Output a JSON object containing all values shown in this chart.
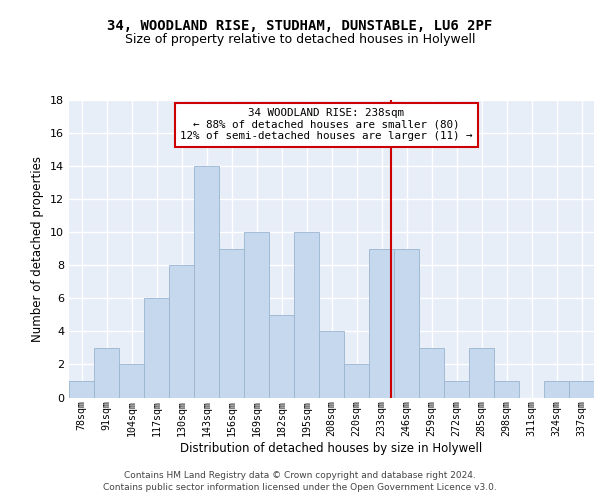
{
  "title1": "34, WOODLAND RISE, STUDHAM, DUNSTABLE, LU6 2PF",
  "title2": "Size of property relative to detached houses in Holywell",
  "xlabel": "Distribution of detached houses by size in Holywell",
  "ylabel": "Number of detached properties",
  "categories": [
    "78sqm",
    "91sqm",
    "104sqm",
    "117sqm",
    "130sqm",
    "143sqm",
    "156sqm",
    "169sqm",
    "182sqm",
    "195sqm",
    "208sqm",
    "220sqm",
    "233sqm",
    "246sqm",
    "259sqm",
    "272sqm",
    "285sqm",
    "298sqm",
    "311sqm",
    "324sqm",
    "337sqm"
  ],
  "values": [
    1,
    3,
    2,
    6,
    8,
    14,
    9,
    10,
    5,
    10,
    4,
    2,
    9,
    9,
    3,
    1,
    3,
    1,
    0,
    1,
    1
  ],
  "bar_color": "#c5d8ed",
  "bar_edge_color": "#9ab5d0",
  "bar_width": 0.97,
  "vline_color": "#cc0000",
  "annotation_title": "34 WOODLAND RISE: 238sqm",
  "annotation_line1": "← 88% of detached houses are smaller (80)",
  "annotation_line2": "12% of semi-detached houses are larger (11) →",
  "annotation_box_color": "#ffffff",
  "annotation_box_edge": "#cc0000",
  "ylim": [
    0,
    18
  ],
  "yticks": [
    0,
    2,
    4,
    6,
    8,
    10,
    12,
    14,
    16,
    18
  ],
  "bg_color": "#e8eef8",
  "grid_color": "#ffffff",
  "footer1": "Contains HM Land Registry data © Crown copyright and database right 2024.",
  "footer2": "Contains public sector information licensed under the Open Government Licence v3.0."
}
